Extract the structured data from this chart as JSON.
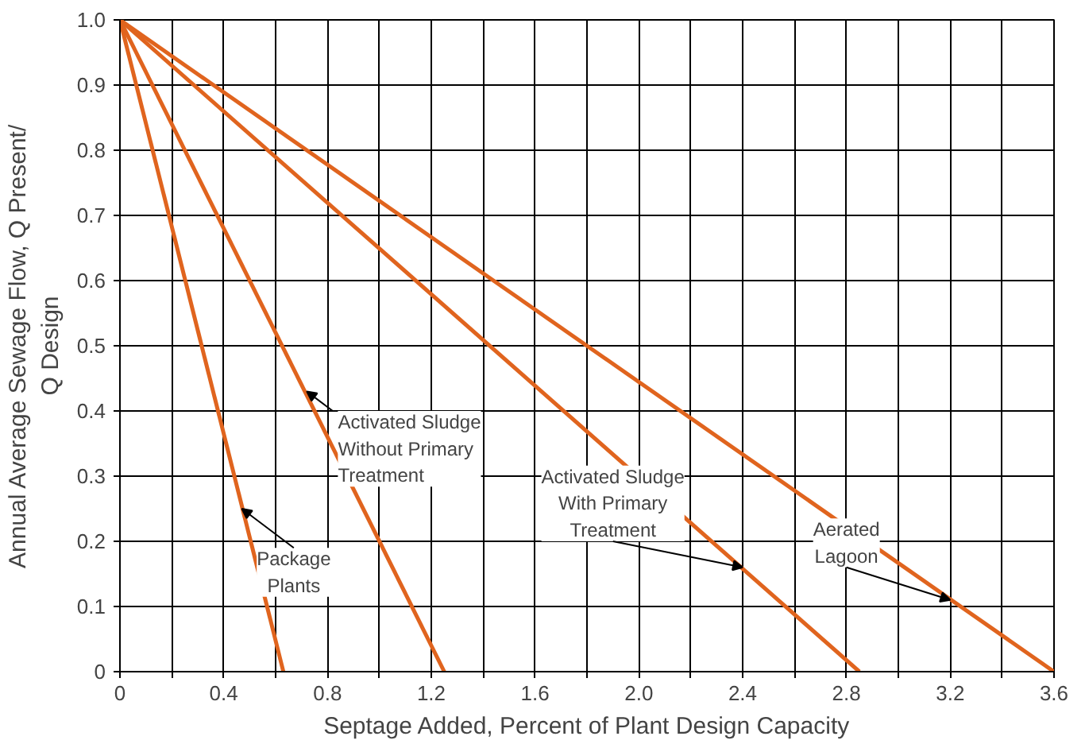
{
  "chart_data": {
    "type": "line",
    "xlabel": "Septage Added, Percent of Plant Design Capacity",
    "ylabel": "Annual Average Sewage Flow, Q Present/\nQ Design",
    "series": [
      {
        "color": "#e0641e",
        "x": [
          0,
          0.63
        ],
        "values": [
          1.0,
          0
        ]
      },
      {
        "color": "#e0641e",
        "x": [
          0,
          1.25
        ],
        "values": [
          1.0,
          0
        ]
      },
      {
        "color": "#e0641e",
        "x": [
          0,
          2.85
        ],
        "values": [
          1.0,
          0
        ]
      },
      {
        "color": "#e0641e",
        "x": [
          0,
          3.6
        ],
        "values": [
          1.0,
          0
        ]
      }
    ],
    "xlim": [
      0,
      3.6
    ],
    "ylim": [
      0,
      1.0
    ],
    "xticks": [
      0,
      {
        "value": 0.2,
        "label": null
      },
      0.4,
      {
        "value": 0.6,
        "label": null
      },
      0.8,
      {
        "value": 1.0,
        "label": null
      },
      1.2,
      {
        "value": 1.4,
        "label": null
      },
      1.6,
      {
        "value": 1.8,
        "label": null
      },
      {
        "value": 2.0,
        "label": "2.0"
      },
      {
        "value": 2.2,
        "label": null
      },
      2.4,
      {
        "value": 2.6,
        "label": null
      },
      2.8,
      {
        "value": 3.0,
        "label": null
      },
      3.2,
      {
        "value": 3.4,
        "label": null
      },
      3.6
    ],
    "yticks": [
      0,
      0.1,
      0.2,
      0.3,
      0.4,
      0.5,
      0.6,
      0.7,
      0.8,
      0.9,
      {
        "value": 1.0,
        "label": "1.0"
      }
    ],
    "grid": true,
    "line_style": "solid",
    "marker": "none",
    "annotations": [
      {
        "text": "Package\nPlants",
        "x": 0.47,
        "y": 0.25
      },
      {
        "text": "Activated Sludge\nWithout Primary\nTreatment",
        "x": 0.72,
        "y": 0.43
      },
      {
        "text": "Activated Sludge\nWith Primary\nTreatment",
        "x": 2.4,
        "y": 0.16
      },
      {
        "text": "Aerated\nLagoon",
        "x": 3.2,
        "y": 0.11
      }
    ]
  }
}
